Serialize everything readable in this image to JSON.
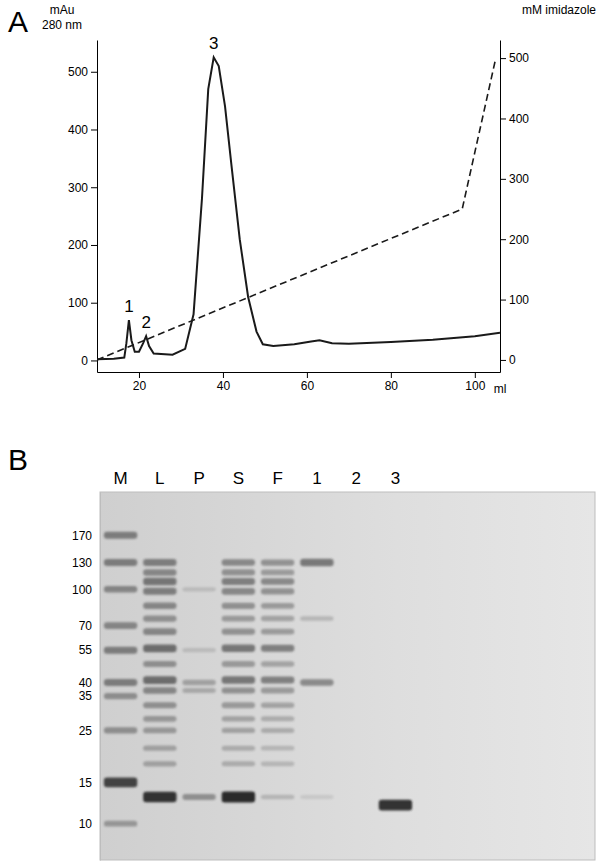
{
  "chart_data": [
    {
      "type": "line",
      "title": "A",
      "y_label": [
        "mAu",
        "280 nm"
      ],
      "y2_label": "mM imidazole",
      "x_label": "ml",
      "xlim": [
        10,
        106
      ],
      "xticks": [
        20,
        40,
        60,
        80,
        100
      ],
      "ylim": [
        -20,
        555
      ],
      "yticks": [
        0,
        100,
        200,
        300,
        400,
        500
      ],
      "y2lim": [
        -20,
        530
      ],
      "y2ticks": [
        0,
        100,
        200,
        300,
        400,
        500
      ],
      "series": [
        {
          "color": "#1a1a1a",
          "line_style": "solid",
          "x": [
            10,
            14,
            16.5,
            17,
            17.6,
            18.2,
            19,
            20,
            21,
            21.7,
            22.4,
            23.5,
            28,
            31,
            33,
            35,
            36.5,
            37.8,
            39,
            40.5,
            42,
            44,
            46,
            48,
            49.5,
            52,
            57,
            61,
            63,
            66,
            70,
            80,
            90,
            100,
            106
          ],
          "values": [
            2,
            3,
            5,
            30,
            70,
            35,
            15,
            15,
            30,
            42,
            25,
            12,
            10,
            20,
            80,
            280,
            470,
            525,
            510,
            440,
            340,
            210,
            110,
            50,
            28,
            25,
            28,
            33,
            35,
            30,
            29,
            32,
            36,
            42,
            48
          ]
        },
        {
          "color": "#1a1a1a",
          "line_style": "dashed",
          "axis": "y2",
          "x": [
            10,
            97,
            105
          ],
          "values": [
            0,
            250,
            500
          ]
        }
      ],
      "annotations": [
        {
          "text": "1",
          "x": 17.6,
          "y": 70
        },
        {
          "text": "2",
          "x": 21.7,
          "y": 42
        },
        {
          "text": "3",
          "x": 37.8,
          "y": 525
        }
      ]
    },
    {
      "type": "gel",
      "title": "B",
      "log": "y",
      "categories": [
        "M",
        "L",
        "P",
        "S",
        "F",
        "1",
        "2",
        "3"
      ],
      "ylim": [
        7,
        260
      ],
      "yticks": [
        170,
        130,
        100,
        70,
        55,
        40,
        35,
        25,
        15,
        10
      ],
      "bands": [
        [
          {
            "mw": 170,
            "intensity": 0.5
          },
          {
            "mw": 130,
            "intensity": 0.5
          },
          {
            "mw": 100,
            "intensity": 0.45
          },
          {
            "mw": 70,
            "intensity": 0.45
          },
          {
            "mw": 55,
            "intensity": 0.5
          },
          {
            "mw": 40,
            "intensity": 0.5
          },
          {
            "mw": 35,
            "intensity": 0.4
          },
          {
            "mw": 25,
            "intensity": 0.4
          },
          {
            "mw": 15,
            "intensity": 0.85
          },
          {
            "mw": 10,
            "intensity": 0.35
          }
        ],
        [
          {
            "mw": 130,
            "intensity": 0.5
          },
          {
            "mw": 118,
            "intensity": 0.45
          },
          {
            "mw": 108,
            "intensity": 0.55
          },
          {
            "mw": 98,
            "intensity": 0.5
          },
          {
            "mw": 85,
            "intensity": 0.45
          },
          {
            "mw": 75,
            "intensity": 0.4
          },
          {
            "mw": 66,
            "intensity": 0.45
          },
          {
            "mw": 56,
            "intensity": 0.6
          },
          {
            "mw": 48,
            "intensity": 0.4
          },
          {
            "mw": 41,
            "intensity": 0.6
          },
          {
            "mw": 37,
            "intensity": 0.45
          },
          {
            "mw": 32,
            "intensity": 0.4
          },
          {
            "mw": 28,
            "intensity": 0.35
          },
          {
            "mw": 25,
            "intensity": 0.35
          },
          {
            "mw": 21,
            "intensity": 0.3
          },
          {
            "mw": 18,
            "intensity": 0.3
          },
          {
            "mw": 13,
            "intensity": 0.95
          }
        ],
        [
          {
            "mw": 100,
            "intensity": 0.15
          },
          {
            "mw": 55,
            "intensity": 0.15
          },
          {
            "mw": 40,
            "intensity": 0.3
          },
          {
            "mw": 37,
            "intensity": 0.25
          },
          {
            "mw": 13,
            "intensity": 0.4
          }
        ],
        [
          {
            "mw": 130,
            "intensity": 0.45
          },
          {
            "mw": 118,
            "intensity": 0.4
          },
          {
            "mw": 108,
            "intensity": 0.5
          },
          {
            "mw": 98,
            "intensity": 0.45
          },
          {
            "mw": 85,
            "intensity": 0.4
          },
          {
            "mw": 75,
            "intensity": 0.35
          },
          {
            "mw": 66,
            "intensity": 0.4
          },
          {
            "mw": 56,
            "intensity": 0.55
          },
          {
            "mw": 48,
            "intensity": 0.35
          },
          {
            "mw": 41,
            "intensity": 0.55
          },
          {
            "mw": 37,
            "intensity": 0.4
          },
          {
            "mw": 32,
            "intensity": 0.35
          },
          {
            "mw": 28,
            "intensity": 0.3
          },
          {
            "mw": 25,
            "intensity": 0.3
          },
          {
            "mw": 21,
            "intensity": 0.25
          },
          {
            "mw": 18,
            "intensity": 0.25
          },
          {
            "mw": 13,
            "intensity": 1.0
          }
        ],
        [
          {
            "mw": 130,
            "intensity": 0.4
          },
          {
            "mw": 118,
            "intensity": 0.35
          },
          {
            "mw": 108,
            "intensity": 0.45
          },
          {
            "mw": 98,
            "intensity": 0.4
          },
          {
            "mw": 85,
            "intensity": 0.35
          },
          {
            "mw": 75,
            "intensity": 0.3
          },
          {
            "mw": 66,
            "intensity": 0.35
          },
          {
            "mw": 56,
            "intensity": 0.5
          },
          {
            "mw": 48,
            "intensity": 0.3
          },
          {
            "mw": 41,
            "intensity": 0.5
          },
          {
            "mw": 37,
            "intensity": 0.35
          },
          {
            "mw": 32,
            "intensity": 0.3
          },
          {
            "mw": 28,
            "intensity": 0.25
          },
          {
            "mw": 25,
            "intensity": 0.25
          },
          {
            "mw": 21,
            "intensity": 0.2
          },
          {
            "mw": 18,
            "intensity": 0.2
          },
          {
            "mw": 13,
            "intensity": 0.2
          }
        ],
        [
          {
            "mw": 130,
            "intensity": 0.55
          },
          {
            "mw": 75,
            "intensity": 0.2
          },
          {
            "mw": 40,
            "intensity": 0.45
          },
          {
            "mw": 13,
            "intensity": 0.1
          }
        ],
        [],
        [
          {
            "mw": 12,
            "intensity": 0.95
          }
        ]
      ]
    }
  ]
}
